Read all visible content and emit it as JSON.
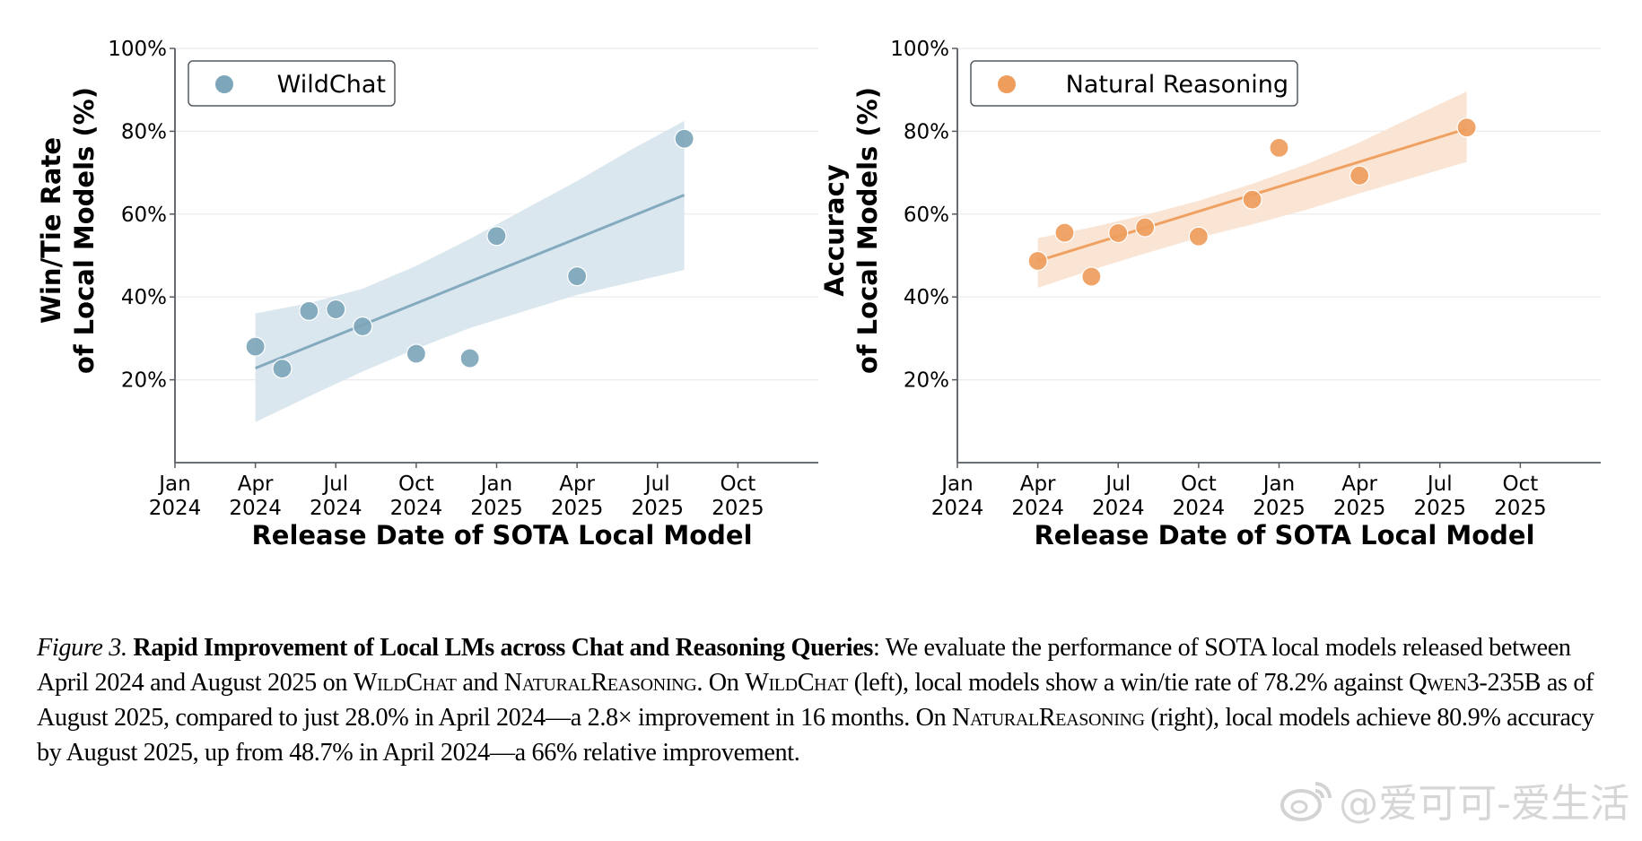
{
  "chart_data": [
    {
      "type": "scatter",
      "id": "left",
      "legend": "WildChat",
      "legend_position": "top-left",
      "color": "#7ea6ba",
      "band_color": "#d9e6ee",
      "ylabel_line1": "Win/Tie Rate",
      "ylabel_line2": "of Local Models (%)",
      "xlabel": "Release Date of SOTA Local Model",
      "ylim": [
        0,
        100
      ],
      "xlim_months_since_jan_2024": [
        0,
        24
      ],
      "y_ticks": [
        {
          "value": 20,
          "label": "20%"
        },
        {
          "value": 40,
          "label": "40%"
        },
        {
          "value": 60,
          "label": "60%"
        },
        {
          "value": 80,
          "label": "80%"
        },
        {
          "value": 100,
          "label": "100%"
        }
      ],
      "x_ticks": [
        {
          "value": 0,
          "month": "Jan",
          "year": "2024"
        },
        {
          "value": 3,
          "month": "Apr",
          "year": "2024"
        },
        {
          "value": 6,
          "month": "Jul",
          "year": "2024"
        },
        {
          "value": 9,
          "month": "Oct",
          "year": "2024"
        },
        {
          "value": 12,
          "month": "Jan",
          "year": "2025"
        },
        {
          "value": 15,
          "month": "Apr",
          "year": "2025"
        },
        {
          "value": 18,
          "month": "Jul",
          "year": "2025"
        },
        {
          "value": 21,
          "month": "Oct",
          "year": "2025"
        }
      ],
      "grid": "horizontal",
      "points": [
        {
          "x": 3.0,
          "y": 28.0
        },
        {
          "x": 4.0,
          "y": 22.7
        },
        {
          "x": 5.0,
          "y": 36.6
        },
        {
          "x": 6.0,
          "y": 37.0
        },
        {
          "x": 7.0,
          "y": 32.9
        },
        {
          "x": 9.0,
          "y": 26.3
        },
        {
          "x": 11.0,
          "y": 25.2
        },
        {
          "x": 12.0,
          "y": 54.7
        },
        {
          "x": 15.0,
          "y": 45.0
        },
        {
          "x": 19.0,
          "y": 78.2
        }
      ],
      "trend_line": {
        "x": [
          3.0,
          19.0
        ],
        "y": [
          22.8,
          64.6
        ]
      },
      "confidence_band": {
        "x": [
          3.0,
          5.0,
          7.0,
          9.0,
          11.0,
          13.0,
          15.0,
          17.0,
          19.0
        ],
        "upper": [
          36.0,
          38.5,
          42.0,
          47.5,
          54.0,
          61.0,
          68.0,
          75.5,
          82.5
        ],
        "lower": [
          9.8,
          16.0,
          22.0,
          27.5,
          32.5,
          36.5,
          40.5,
          43.5,
          46.5
        ]
      }
    },
    {
      "type": "scatter",
      "id": "right",
      "legend": "Natural Reasoning",
      "legend_position": "top-left",
      "color": "#ee9d5c",
      "band_color": "#fae3d2",
      "ylabel_line1": "Accuracy",
      "ylabel_line2": "of Local Models (%)",
      "xlabel": "Release Date of SOTA Local Model",
      "ylim": [
        0,
        100
      ],
      "xlim_months_since_jan_2024": [
        0,
        24
      ],
      "y_ticks": [
        {
          "value": 20,
          "label": "20%"
        },
        {
          "value": 40,
          "label": "40%"
        },
        {
          "value": 60,
          "label": "60%"
        },
        {
          "value": 80,
          "label": "80%"
        },
        {
          "value": 100,
          "label": "100%"
        }
      ],
      "x_ticks": [
        {
          "value": 0,
          "month": "Jan",
          "year": "2024"
        },
        {
          "value": 3,
          "month": "Apr",
          "year": "2024"
        },
        {
          "value": 6,
          "month": "Jul",
          "year": "2024"
        },
        {
          "value": 9,
          "month": "Oct",
          "year": "2024"
        },
        {
          "value": 12,
          "month": "Jan",
          "year": "2025"
        },
        {
          "value": 15,
          "month": "Apr",
          "year": "2025"
        },
        {
          "value": 18,
          "month": "Jul",
          "year": "2025"
        },
        {
          "value": 21,
          "month": "Oct",
          "year": "2025"
        }
      ],
      "grid": "horizontal",
      "points": [
        {
          "x": 3.0,
          "y": 48.7
        },
        {
          "x": 4.0,
          "y": 55.5
        },
        {
          "x": 5.0,
          "y": 44.9
        },
        {
          "x": 6.0,
          "y": 55.4
        },
        {
          "x": 7.0,
          "y": 56.8
        },
        {
          "x": 9.0,
          "y": 54.6
        },
        {
          "x": 11.0,
          "y": 63.5
        },
        {
          "x": 12.0,
          "y": 76.0
        },
        {
          "x": 15.0,
          "y": 69.3
        },
        {
          "x": 19.0,
          "y": 80.9
        }
      ],
      "trend_line": {
        "x": [
          3.0,
          19.0
        ],
        "y": [
          48.7,
          80.6
        ]
      },
      "confidence_band": {
        "x": [
          3.0,
          5.0,
          7.0,
          9.0,
          11.0,
          13.0,
          15.0,
          17.0,
          19.0
        ],
        "upper": [
          54.2,
          56.8,
          59.8,
          63.2,
          67.3,
          72.0,
          77.3,
          83.5,
          89.6
        ],
        "lower": [
          42.2,
          46.5,
          50.5,
          54.3,
          57.5,
          61.0,
          65.0,
          68.8,
          72.6
        ]
      }
    }
  ],
  "caption": {
    "figure_label": "Figure 3.",
    "title": "Rapid Improvement of Local LMs across Chat and Reasoning Queries",
    "segments": [
      {
        "t": ": We evaluate the performance of SOTA local models released between April 2024 and August 2025 on ",
        "sc": false
      },
      {
        "t": "WildChat",
        "sc": true
      },
      {
        "t": " and ",
        "sc": false
      },
      {
        "t": "NaturalReasoning",
        "sc": true
      },
      {
        "t": ". On ",
        "sc": false
      },
      {
        "t": "WildChat",
        "sc": true
      },
      {
        "t": " (left), local models show a win/tie rate of 78.2% against ",
        "sc": false
      },
      {
        "t": "Qwen3-235B",
        "sc": true
      },
      {
        "t": " as of August 2025, compared to just 28.0% in April 2024—a 2.8× improvement in 16 months. On ",
        "sc": false
      },
      {
        "t": "NaturalReasoning",
        "sc": true
      },
      {
        "t": " (right), local models achieve 80.9% accuracy by August 2025, up from 48.7% in April 2024—a 66% relative improvement.",
        "sc": false
      }
    ]
  },
  "watermark": {
    "text": "@爱可可-爱生活",
    "icon": "weibo-icon"
  }
}
